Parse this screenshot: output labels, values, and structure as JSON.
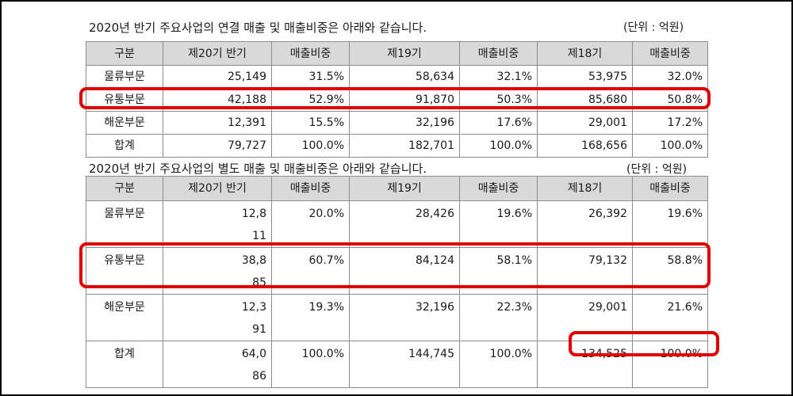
{
  "section1": {
    "title": "2020년 반기 주요사업의 연결 매출 및 매출비중은 아래와 같습니다.",
    "unit": "(단위 : 억원)",
    "headers": [
      "구분",
      "제20기 반기",
      "매출비중",
      "제19기",
      "매출비중",
      "제18기",
      "매출비중"
    ],
    "rows": [
      {
        "label": "물류부문",
        "c1": "25,149",
        "c2": "31.5%",
        "c3": "58,634",
        "c4": "32.1%",
        "c5": "53,975",
        "c6": "32.0%"
      },
      {
        "label": "유통부문",
        "c1": "42,188",
        "c2": "52.9%",
        "c3": "91,870",
        "c4": "50.3%",
        "c5": "85,680",
        "c6": "50.8%"
      },
      {
        "label": "해운부문",
        "c1": "12,391",
        "c2": "15.5%",
        "c3": "32,196",
        "c4": "17.6%",
        "c5": "29,001",
        "c6": "17.2%"
      },
      {
        "label": "합계",
        "c1": "79,727",
        "c2": "100.0%",
        "c3": "182,701",
        "c4": "100.0%",
        "c5": "168,656",
        "c6": "100.0%"
      }
    ]
  },
  "section2": {
    "title": "2020년 반기 주요사업의 별도 매출 및 매출비중은 아래와 같습니다.",
    "unit": "(단위 : 억원)",
    "headers": [
      "구분",
      "제20기 반기",
      "매출비중",
      "제19기",
      "매출비중",
      "제18기",
      "매출비중"
    ],
    "rows": [
      {
        "label": "물류부문",
        "c1": "12,811",
        "c2": "20.0%",
        "c3": "28,426",
        "c4": "19.6%",
        "c5": "26,392",
        "c6": "19.6%"
      },
      {
        "label": "유통부문",
        "c1": "38,885",
        "c2": "60.7%",
        "c3": "84,124",
        "c4": "58.1%",
        "c5": "79,132",
        "c6": "58.8%"
      },
      {
        "label": "해운부문",
        "c1": "12,391",
        "c2": "19.3%",
        "c3": "32,196",
        "c4": "22.3%",
        "c5": "29,001",
        "c6": "21.6%"
      },
      {
        "label": "합계",
        "c1": "64,086",
        "c2": "100.0%",
        "c3": "144,745",
        "c4": "100.0%",
        "c5": "134,525",
        "c6": "100.0%"
      }
    ]
  },
  "highlight_color": "#e00000",
  "header_bg": "#d9d9d9"
}
